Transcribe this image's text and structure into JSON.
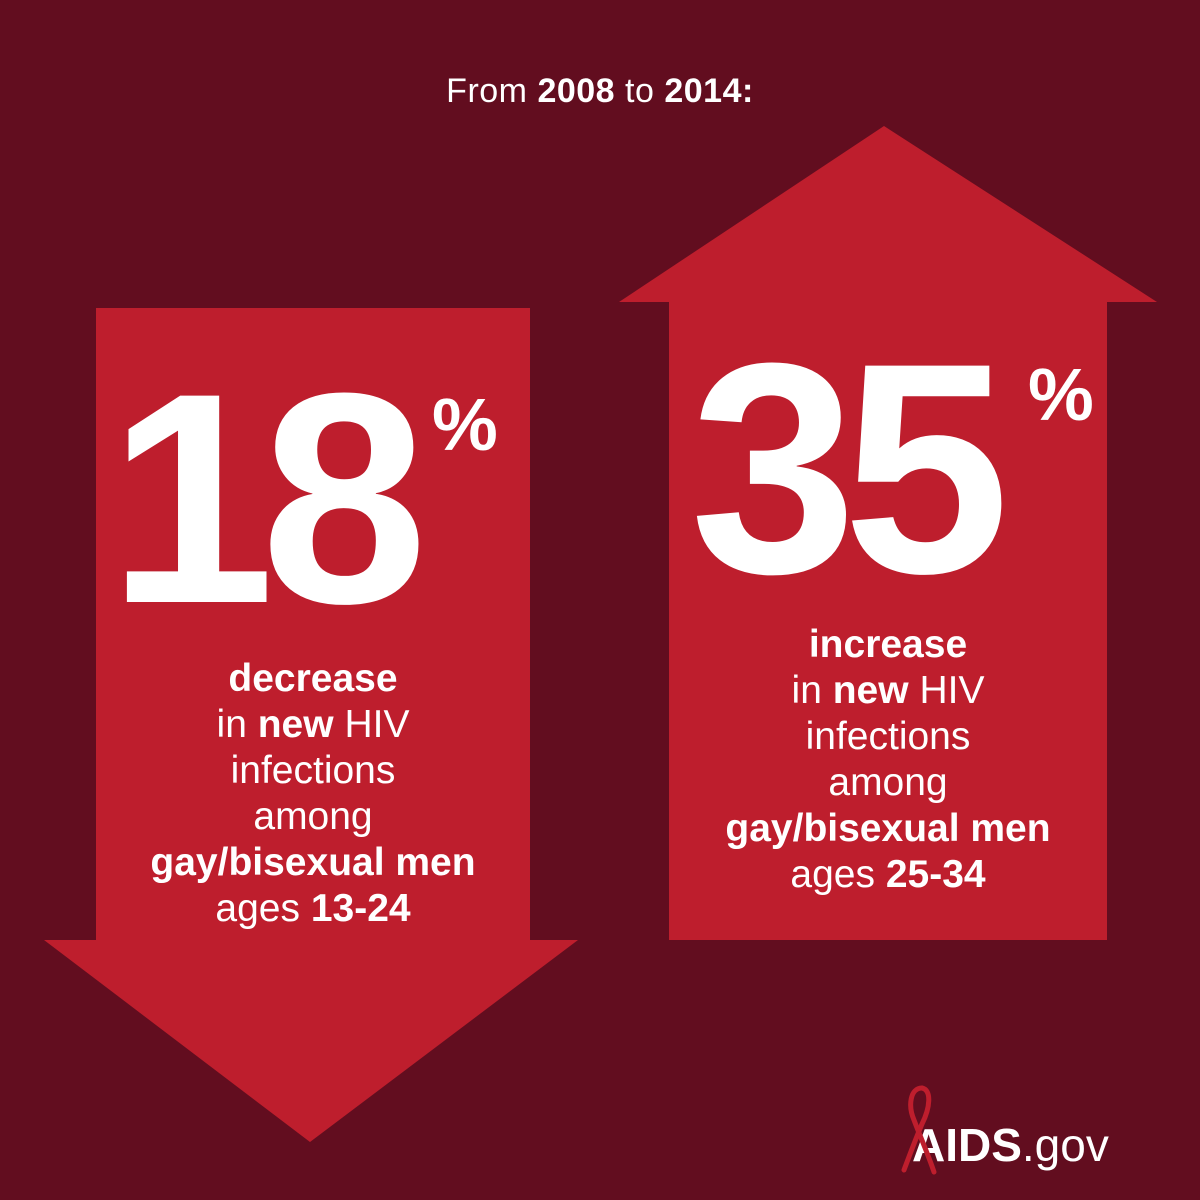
{
  "header": {
    "prefix": "From",
    "year_start": "2008",
    "connector": "to",
    "year_end": "2014:"
  },
  "left_panel": {
    "direction": "down",
    "number": "18",
    "percent_sign": "%",
    "lines": {
      "line1": "decrease",
      "line2_pre": "in",
      "line2_bold": "new",
      "line2_post": "HIV",
      "line3": "infections",
      "line4": "among",
      "line5": "gay/bisexual men",
      "line6_pre": "ages",
      "line6_bold": "13-24"
    }
  },
  "right_panel": {
    "direction": "up",
    "number": "35",
    "percent_sign": "%",
    "lines": {
      "line1": "increase",
      "line2_pre": "in",
      "line2_bold": "new",
      "line2_post": "HIV",
      "line3": "infections",
      "line4": "among",
      "line5": "gay/bisexual men",
      "line6_pre": "ages",
      "line6_bold": "25-34"
    }
  },
  "logo": {
    "brand": "AIDS",
    "domain": ".gov",
    "icon": "red-ribbon-icon"
  },
  "colors": {
    "background": "#620d1f",
    "arrow_red": "#be1e2d",
    "text": "#ffffff"
  }
}
